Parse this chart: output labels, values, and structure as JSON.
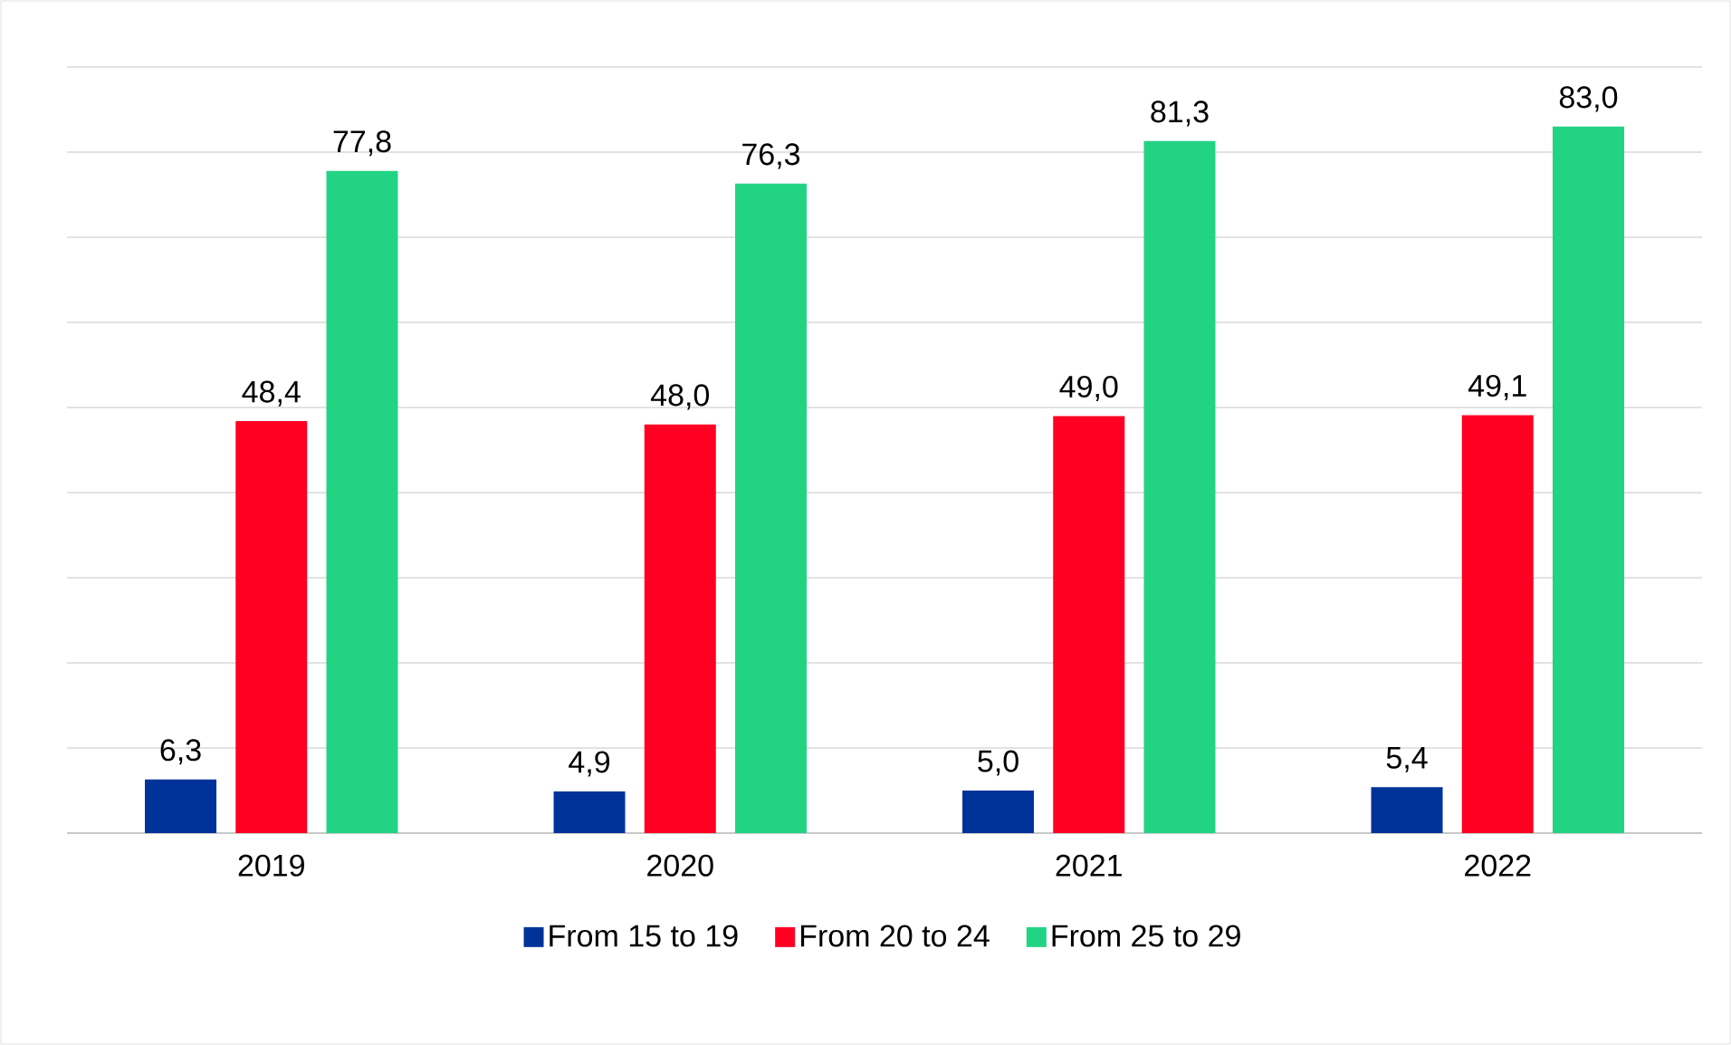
{
  "chart_data": {
    "type": "bar",
    "categories": [
      "2019",
      "2020",
      "2021",
      "2022"
    ],
    "series": [
      {
        "name": "From 15 to 19",
        "color": "#003399",
        "values": [
          6.3,
          4.9,
          5.0,
          5.4
        ],
        "value_labels": [
          "6,3",
          "4,9",
          "5,0",
          "5,4"
        ]
      },
      {
        "name": "From 20 to 24",
        "color": "#ff0022",
        "values": [
          48.4,
          48.0,
          49.0,
          49.1
        ],
        "value_labels": [
          "48,4",
          "48,0",
          "49,0",
          "49,1"
        ]
      },
      {
        "name": "From 25 to 29",
        "color": "#22d383",
        "values": [
          77.8,
          76.3,
          81.3,
          83.0
        ],
        "value_labels": [
          "77,8",
          "76,3",
          "81,3",
          "83,0"
        ]
      }
    ],
    "ylim": [
      0,
      90
    ],
    "yticks": [
      {
        "value": 0,
        "label": null
      },
      {
        "value": 10,
        "label": null
      },
      {
        "value": 20,
        "label": null
      },
      {
        "value": 30,
        "label": null
      },
      {
        "value": 40,
        "label": null
      },
      {
        "value": 50,
        "label": null
      },
      {
        "value": 60,
        "label": null
      },
      {
        "value": 70,
        "label": null
      },
      {
        "value": 80,
        "label": null
      },
      {
        "value": 90,
        "label": null
      }
    ],
    "tick_labels": "x",
    "grid": "y",
    "legend": "bottom"
  }
}
